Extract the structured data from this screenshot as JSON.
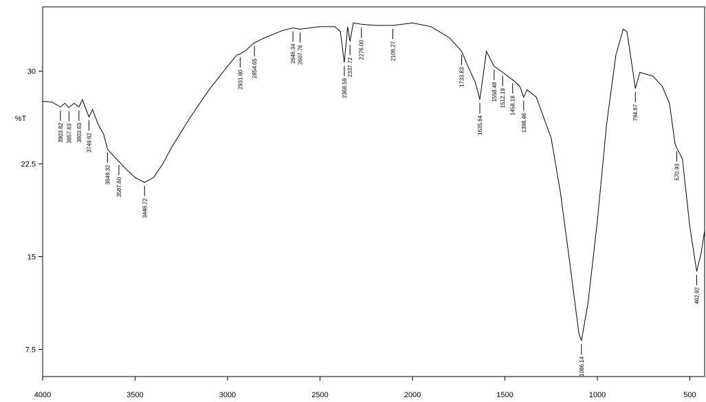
{
  "chart_data": {
    "type": "line",
    "y_label": "%T",
    "color": "#000000",
    "x": [
      4000,
      3950,
      3903.82,
      3880,
      3857.63,
      3830,
      3803.63,
      3785,
      3749.62,
      3730,
      3700,
      3670,
      3649.32,
      3620,
      3587.6,
      3550,
      3500,
      3448.72,
      3400,
      3350,
      3300,
      3200,
      3100,
      3000,
      2950,
      2931.8,
      2900,
      2854.65,
      2800,
      2700,
      2646.34,
      2607.76,
      2500,
      2420,
      2390,
      2368.59,
      2350,
      2337.72,
      2320,
      2276,
      2200,
      2106.27,
      2000,
      1900,
      1800,
      1733.83,
      1700,
      1660,
      1635.64,
      1600,
      1558.48,
      1512.19,
      1458.18,
      1420,
      1398.46,
      1380,
      1330,
      1250,
      1200,
      1150,
      1100,
      1086.14,
      1050,
      1000,
      950,
      900,
      860,
      840,
      810,
      794.67,
      770,
      700,
      650,
      610,
      580,
      570.93,
      540,
      500,
      462.92,
      440,
      420
    ],
    "values": [
      27.56,
      27.5,
      27.1,
      27.4,
      27.05,
      27.4,
      27.1,
      27.7,
      26.3,
      26.9,
      25.7,
      24.9,
      23.7,
      23.2,
      22.7,
      22.1,
      21.4,
      21.0,
      21.4,
      22.5,
      23.9,
      26.3,
      28.5,
      30.4,
      31.3,
      31.4,
      31.7,
      32.3,
      32.7,
      33.3,
      33.5,
      33.4,
      33.6,
      33.6,
      33.2,
      30.7,
      33.6,
      32.4,
      33.9,
      33.8,
      33.7,
      33.7,
      33.9,
      33.6,
      32.7,
      31.6,
      30.4,
      29.1,
      27.7,
      31.6,
      30.4,
      29.9,
      29.3,
      28.8,
      27.9,
      28.5,
      27.9,
      24.6,
      20.2,
      14.6,
      8.8,
      8.2,
      11.3,
      17.9,
      25.7,
      31.3,
      33.4,
      33.2,
      30.2,
      28.6,
      29.9,
      29.6,
      28.8,
      27.4,
      24.1,
      23.8,
      22.9,
      17.4,
      13.8,
      15.2,
      17.1
    ],
    "peaks": [
      {
        "x": 3903.82,
        "y": 27.1
      },
      {
        "x": 3857.63,
        "y": 27.05
      },
      {
        "x": 3803.63,
        "y": 27.1
      },
      {
        "x": 3749.62,
        "y": 26.3
      },
      {
        "x": 3649.32,
        "y": 23.7
      },
      {
        "x": 3587.6,
        "label": "3587.60",
        "y": 22.7
      },
      {
        "x": 3448.72,
        "y": 21.0
      },
      {
        "x": 2931.8,
        "label": "2931.80",
        "y": 31.4
      },
      {
        "x": 2854.65,
        "y": 32.3
      },
      {
        "x": 2646.34,
        "y": 33.5
      },
      {
        "x": 2607.76,
        "y": 33.4
      },
      {
        "x": 2368.59,
        "y": 30.7
      },
      {
        "x": 2337.72,
        "y": 32.4
      },
      {
        "x": 2276,
        "label": "2276.00",
        "y": 33.8
      },
      {
        "x": 2106.27,
        "y": 33.7
      },
      {
        "x": 1733.83,
        "y": 31.6
      },
      {
        "x": 1635.64,
        "y": 27.7
      },
      {
        "x": 1558.48,
        "y": 30.4
      },
      {
        "x": 1512.19,
        "y": 29.9
      },
      {
        "x": 1458.18,
        "y": 29.3
      },
      {
        "x": 1398.46,
        "y": 27.9
      },
      {
        "x": 1086.14,
        "y": 8.2
      },
      {
        "x": 794.67,
        "y": 28.6
      },
      {
        "x": 570.93,
        "y": 23.8
      },
      {
        "x": 462.92,
        "y": 13.8
      }
    ],
    "xlim": [
      4000,
      420
    ],
    "xticks": [
      4000,
      3500,
      3000,
      2500,
      2000,
      1500,
      1000,
      500
    ],
    "ylim": [
      5.3,
      35.2
    ],
    "yticks": [
      7.5,
      15,
      22.5,
      30
    ]
  }
}
